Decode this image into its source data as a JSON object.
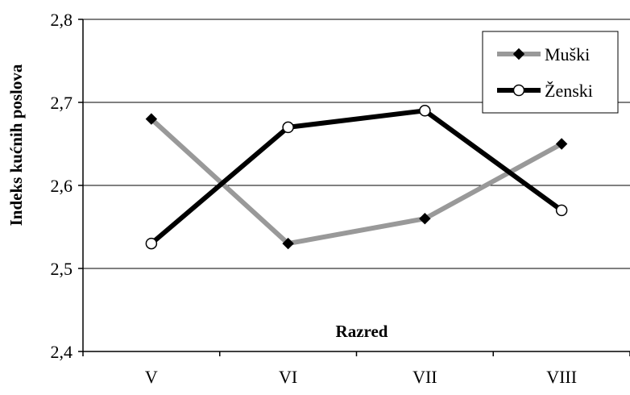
{
  "chart_data": {
    "type": "line",
    "title": "",
    "xlabel": "Razred",
    "ylabel": "Indeks kućnih poslova",
    "categories": [
      "V",
      "VI",
      "VII",
      "VIII"
    ],
    "ylim": [
      2.4,
      2.8
    ],
    "yticks": [
      "2,4",
      "2,5",
      "2,6",
      "2,7",
      "2,8"
    ],
    "grid": true,
    "legend_position": "top-right",
    "series": [
      {
        "name": "Muški",
        "values": [
          2.68,
          2.53,
          2.56,
          2.65
        ],
        "color": "#999999",
        "marker": "diamond"
      },
      {
        "name": "Ženski",
        "values": [
          2.53,
          2.67,
          2.69,
          2.57
        ],
        "color": "#000000",
        "marker": "circle-open"
      }
    ]
  }
}
